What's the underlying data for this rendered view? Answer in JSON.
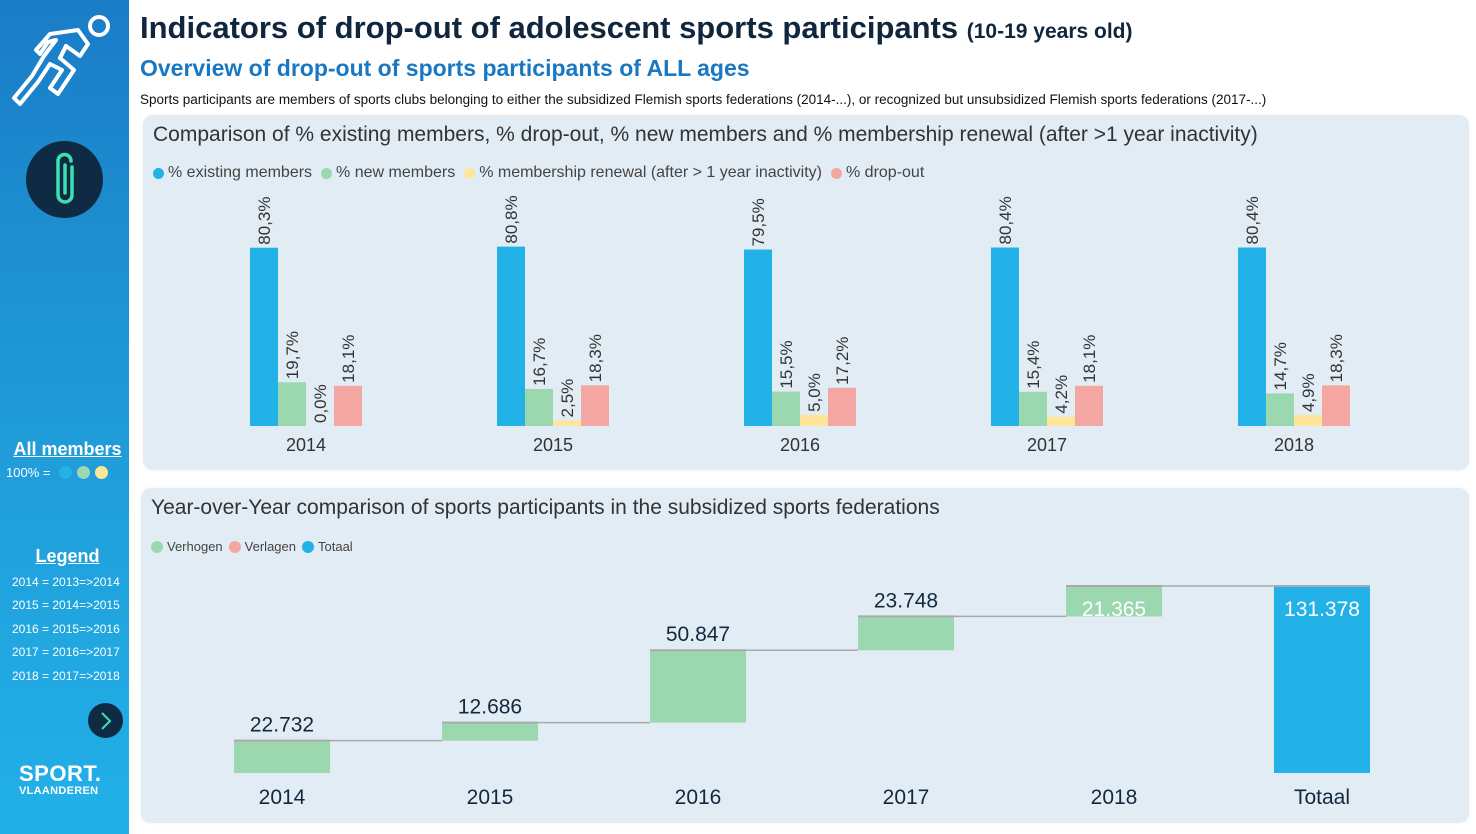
{
  "header": {
    "title": "Indicators of drop-out of adolescent sports participants",
    "age_range": "(10-19 years old)",
    "subtitle": "Overview of drop-out of sports participants of ALL ages",
    "description": "Sports participants are members of sports clubs belonging to either the subsidized Flemish sports federations (2014-...), or recognized but unsubsidized Flemish sports federations (2017-...)"
  },
  "sidebar": {
    "logo_icon": "runner-icon",
    "attachment_icon": "paperclip-icon",
    "all_members_label": "All members",
    "hundred_label": "100% =",
    "hundred_dots": [
      "#22b2e7",
      "#9bd8b0",
      "#fde69a"
    ],
    "legend_title": "Legend",
    "legend_items": [
      "2014 = 2013=>2014",
      "2015 = 2014=>2015",
      "2016 = 2015=>2016",
      "2017 = 2016=>2017",
      "2018 = 2017=>2018"
    ],
    "next_icon": "chevron-right-icon",
    "brand_line1": "SPORT.",
    "brand_line2": "VLAANDEREN"
  },
  "chart_data": [
    {
      "type": "bar",
      "title": "Comparison of % existing members, % drop-out, % new members and % membership renewal (after >1 year inactivity)",
      "legend_position": "top-left",
      "categories": [
        "2014",
        "2015",
        "2016",
        "2017",
        "2018"
      ],
      "series": [
        {
          "name": "% existing members",
          "color": "#22b2e7",
          "values": [
            80.3,
            80.8,
            79.5,
            80.4,
            80.4
          ],
          "labels": [
            "80,3%",
            "80,8%",
            "79,5%",
            "80,4%",
            "80,4%"
          ]
        },
        {
          "name": "% new members",
          "color": "#9bd8b0",
          "values": [
            19.7,
            16.7,
            15.5,
            15.4,
            14.7
          ],
          "labels": [
            "19,7%",
            "16,7%",
            "15,5%",
            "15,4%",
            "14,7%"
          ]
        },
        {
          "name": "% membership renewal (after > 1 year inactivity)",
          "color": "#fde69a",
          "values": [
            0.0,
            2.5,
            5.0,
            4.2,
            4.9
          ],
          "labels": [
            "0,0%",
            "2,5%",
            "5,0%",
            "4,2%",
            "4,9%"
          ]
        },
        {
          "name": "% drop-out",
          "color": "#f4a6a3",
          "values": [
            18.1,
            18.3,
            17.2,
            18.1,
            18.3
          ],
          "labels": [
            "18,1%",
            "18,3%",
            "17,2%",
            "18,1%",
            "18,3%"
          ]
        }
      ],
      "xlabel": "",
      "ylabel": "",
      "ylim": [
        0,
        100
      ],
      "grid": false
    },
    {
      "type": "bar",
      "subtype": "waterfall",
      "title": "Year-over-Year comparison of sports participants in the subsidized sports federations",
      "legend_position": "top-left",
      "legend": [
        {
          "name": "Verhogen",
          "color": "#9bd8b0"
        },
        {
          "name": "Verlagen",
          "color": "#f4a6a3"
        },
        {
          "name": "Totaal",
          "color": "#22b2e7"
        }
      ],
      "categories": [
        "2014",
        "2015",
        "2016",
        "2017",
        "2018",
        "Totaal"
      ],
      "values": [
        22732,
        12686,
        50847,
        23748,
        21365,
        131378
      ],
      "labels": [
        "22.732",
        "12.686",
        "50.847",
        "23.748",
        "21.365",
        "131.378"
      ],
      "kinds": [
        "increase",
        "increase",
        "increase",
        "increase",
        "increase",
        "total"
      ],
      "xlabel": "",
      "ylabel": "",
      "ylim": [
        0,
        131378
      ],
      "grid": false
    }
  ]
}
